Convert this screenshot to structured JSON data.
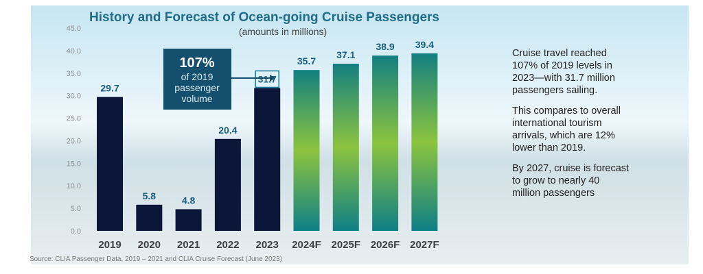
{
  "chart_data": {
    "type": "bar",
    "title": "History and Forecast of Ocean-going Cruise Passengers",
    "subtitle": "(amounts in millions)",
    "categories": [
      "2019",
      "2020",
      "2021",
      "2022",
      "2023",
      "2024F",
      "2025F",
      "2026F",
      "2027F"
    ],
    "values": [
      29.7,
      5.8,
      4.8,
      20.4,
      31.7,
      35.7,
      37.1,
      38.9,
      39.4
    ],
    "data_labels": [
      "29.7",
      "5.8",
      "4.8",
      "20.4",
      "31.7",
      "35.7",
      "37.1",
      "38.9",
      "39.4"
    ],
    "forecast": [
      false,
      false,
      false,
      false,
      false,
      true,
      true,
      true,
      true
    ],
    "ylim": [
      0,
      45
    ],
    "yticks": [
      "0.0",
      "5.0",
      "10.0",
      "15.0",
      "20.0",
      "25.0",
      "30.0",
      "35.0",
      "40.0",
      "45.0"
    ],
    "grid": false,
    "colors": {
      "actual": "#0b1638",
      "forecast_top": "#137f80",
      "forecast_mid": "#8cc43f",
      "label": "#1b5f7c",
      "callout": "#14506e"
    },
    "callout": {
      "big": "107%",
      "lines": [
        "of 2019",
        "passenger",
        "volume"
      ]
    },
    "source": "Source: CLIA Passenger Data, 2019 – 2021 and CLIA Cruise Forecast  (June 2023)"
  },
  "side_text": [
    [
      "Cruise travel reached",
      "107% of 2019 levels in",
      "2023—with 31.7 million",
      "passengers sailing."
    ],
    [
      "This compares to overall",
      "international tourism",
      "arrivals, which are 12%",
      "lower than 2019."
    ],
    [
      "By 2027, cruise is forecast",
      "to grow to nearly 40",
      "million passengers"
    ]
  ]
}
